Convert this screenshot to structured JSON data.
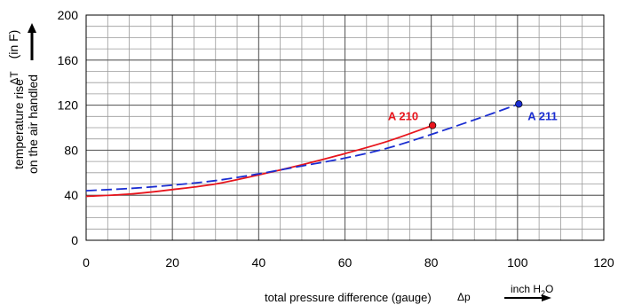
{
  "chart_data": {
    "type": "line",
    "xlim": [
      0,
      120
    ],
    "ylim": [
      0,
      200
    ],
    "x_ticks": [
      0,
      20,
      40,
      60,
      80,
      100,
      120
    ],
    "y_ticks": [
      0,
      40,
      80,
      120,
      160,
      200
    ],
    "x_minor_step": 5,
    "y_minor_step": 10,
    "grid": true,
    "xlabel": "total pressure difference (gauge)",
    "xlabel_symbol": "Δp",
    "xunit_prefix": "inch H",
    "xunit_sub": "2",
    "xunit_suffix": "O",
    "ylabel_line1": "temperature rise",
    "ylabel_line2": "on the air handled",
    "ylabel_symbol": "ΔT",
    "yunit": "(in F)",
    "series": [
      {
        "name": "A 210",
        "color": "#e8141c",
        "dash": "solid",
        "x": [
          0,
          10,
          20,
          30,
          40,
          50,
          60,
          70,
          80.3
        ],
        "y": [
          39,
          41,
          45,
          50,
          58,
          67,
          77,
          88,
          102
        ]
      },
      {
        "name": "A 211",
        "color": "#1a2dd1",
        "dash": "dashed",
        "x": [
          0,
          10,
          20,
          30,
          40,
          50,
          60,
          70,
          80,
          90,
          100.3
        ],
        "y": [
          44,
          46,
          49,
          53,
          59,
          66,
          73,
          82,
          94,
          107,
          121
        ]
      }
    ]
  }
}
